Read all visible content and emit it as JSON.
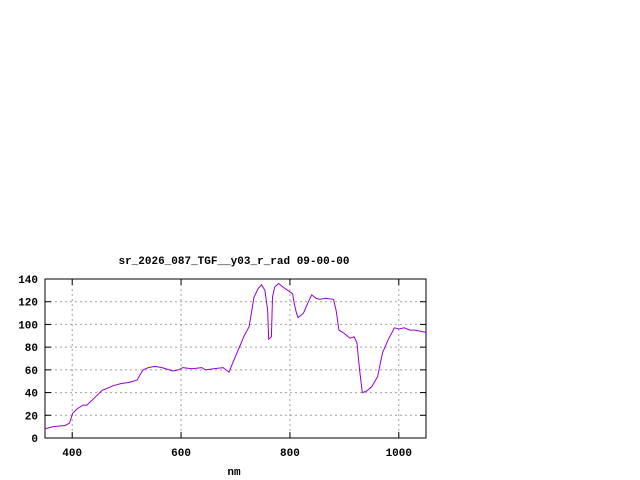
{
  "chart_data": {
    "type": "line",
    "title": "sr_2026_087_TGF__y03_r_rad 09-00-00",
    "xlabel": "nm",
    "ylabel": "",
    "xlim": [
      350,
      1050
    ],
    "ylim": [
      0,
      140
    ],
    "xticks": [
      400,
      600,
      800,
      1000
    ],
    "yticks": [
      0,
      20,
      40,
      60,
      80,
      100,
      120,
      140
    ],
    "grid": true,
    "line_color": "#9400d3",
    "series": [
      {
        "x": [
          350,
          365,
          387,
          395,
          401,
          410,
          420,
          427,
          440,
          455,
          475,
          490,
          505,
          519,
          530,
          540,
          552,
          565,
          585,
          595,
          603,
          620,
          638,
          645,
          660,
          677,
          688,
          699,
          708,
          716,
          725,
          734,
          742,
          748,
          754,
          759,
          761,
          766,
          768,
          772,
          779,
          790,
          796,
          805,
          808,
          812,
          815,
          825,
          834,
          840,
          848,
          855,
          865,
          880,
          885,
          890,
          900,
          910,
          918,
          923,
          928,
          933,
          940,
          950,
          961,
          970,
          980,
          992,
          1000,
          1010,
          1020,
          1030,
          1040,
          1050
        ],
        "y": [
          8,
          10,
          11,
          13,
          22,
          26,
          29,
          29,
          35,
          42,
          46,
          48,
          49,
          51,
          60,
          62,
          63,
          62,
          59,
          60,
          62,
          61,
          62,
          60,
          61,
          62,
          58,
          71,
          81,
          90,
          98,
          124,
          132,
          135,
          130,
          113,
          87,
          89,
          124,
          133,
          136,
          132,
          130,
          127,
          118,
          110,
          106,
          110,
          120,
          126,
          123,
          122,
          123,
          122,
          112,
          95,
          92,
          88,
          89,
          84,
          60,
          40,
          41,
          45,
          54,
          75,
          86,
          97,
          96,
          97,
          95,
          95,
          94,
          93
        ]
      }
    ]
  }
}
